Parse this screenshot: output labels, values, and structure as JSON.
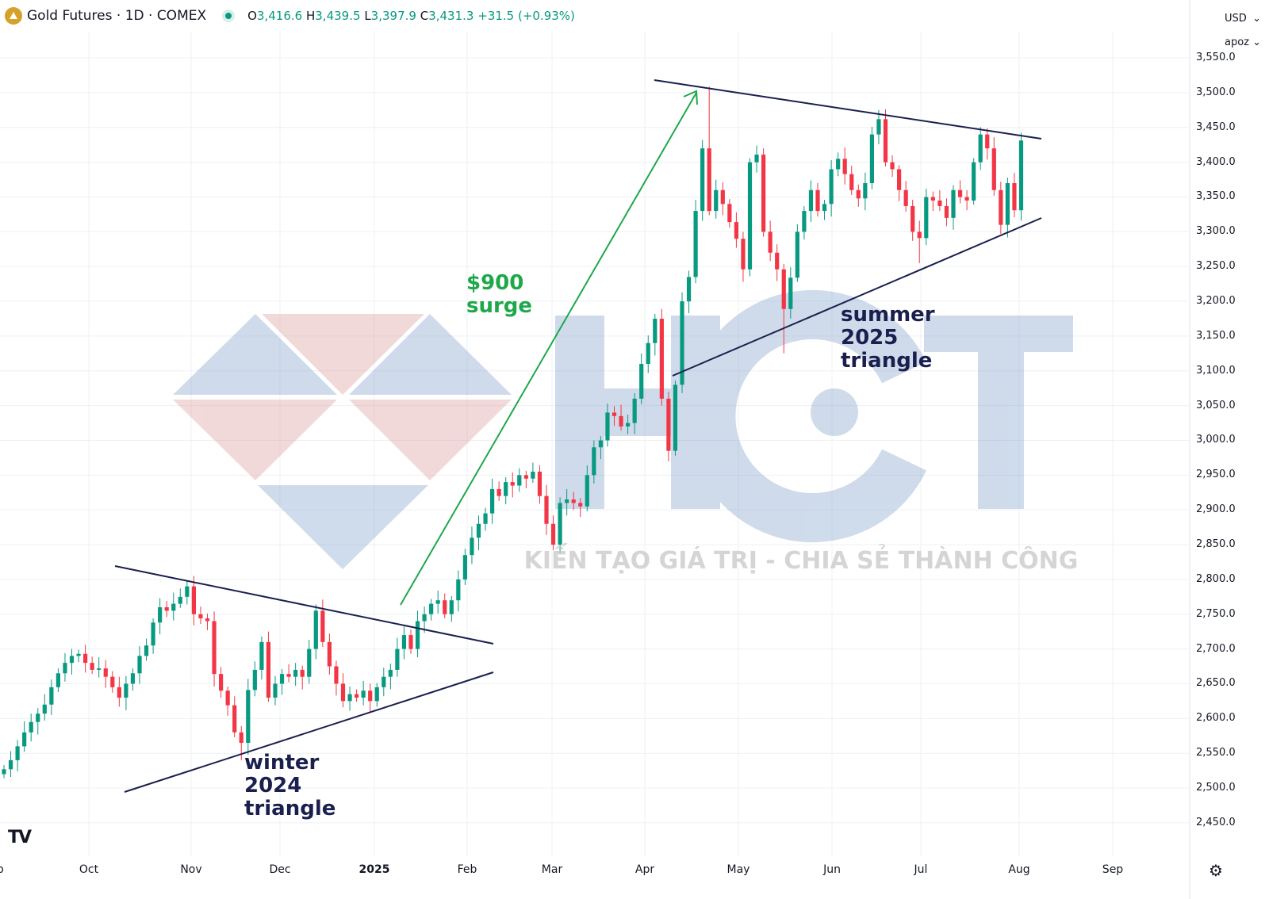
{
  "header": {
    "symbol_title": "Gold Futures · 1D · COMEX",
    "open_label": "O",
    "open": "3,416.6",
    "high_label": "H",
    "high": "3,439.5",
    "low_label": "L",
    "low": "3,397.9",
    "close_label": "C",
    "close": "3,431.3",
    "change": "+31.5 (+0.93%)"
  },
  "controls": {
    "currency": "USD",
    "scale": "apoz"
  },
  "watermark": {
    "brand": "HCT",
    "slogan": "KIẾN TẠO GIÁ TRỊ - CHIA SẺ THÀNH CÔNG"
  },
  "colors": {
    "up": "#089981",
    "down": "#f23645",
    "trend": "#1a1f4e",
    "arrow": "#1fa84a"
  },
  "chart_data": {
    "type": "candlestick",
    "title": "Gold Futures · 1D · COMEX",
    "ylim": [
      2425,
      3575
    ],
    "y_ticks": [
      "3,550.0",
      "3,500.0",
      "3,450.0",
      "3,400.0",
      "3,350.0",
      "3,300.0",
      "3,250.0",
      "3,200.0",
      "3,150.0",
      "3,100.0",
      "3,050.0",
      "3,000.0",
      "2,950.0",
      "2,900.0",
      "2,850.0",
      "2,800.0",
      "2,750.0",
      "2,700.0",
      "2,650.0",
      "2,600.0",
      "2,550.0",
      "2,500.0",
      "2,450.0"
    ],
    "x_ticks": [
      "ep",
      "Oct",
      "Nov",
      "Dec",
      "2025",
      "Feb",
      "Mar",
      "Apr",
      "May",
      "Jun",
      "Jul",
      "Aug",
      "Sep"
    ],
    "closes": [
      2527,
      2540,
      2560,
      2580,
      2595,
      2607,
      2620,
      2645,
      2665,
      2680,
      2690,
      2693,
      2680,
      2670,
      2672,
      2660,
      2645,
      2630,
      2650,
      2665,
      2690,
      2705,
      2738,
      2760,
      2755,
      2765,
      2775,
      2790,
      2750,
      2744,
      2740,
      2664,
      2640,
      2619,
      2580,
      2565,
      2641,
      2670,
      2710,
      2630,
      2650,
      2664,
      2660,
      2670,
      2660,
      2700,
      2755,
      2710,
      2675,
      2650,
      2625,
      2635,
      2630,
      2640,
      2625,
      2645,
      2660,
      2670,
      2700,
      2720,
      2700,
      2740,
      2750,
      2765,
      2770,
      2750,
      2770,
      2800,
      2835,
      2860,
      2880,
      2895,
      2930,
      2920,
      2940,
      2935,
      2950,
      2945,
      2955,
      2920,
      2880,
      2850,
      2910,
      2915,
      2910,
      2905,
      2950,
      2990,
      3000,
      3040,
      3035,
      3020,
      3025,
      3060,
      3110,
      3140,
      3175,
      3060,
      2985,
      3080,
      3200,
      3235,
      3330,
      3420,
      3330,
      3360,
      3340,
      3314,
      3290,
      3246,
      3400,
      3411,
      3300,
      3270,
      3246,
      3189,
      3234,
      3300,
      3330,
      3360,
      3330,
      3340,
      3390,
      3405,
      3383,
      3360,
      3348,
      3370,
      3440,
      3462,
      3400,
      3390,
      3360,
      3337,
      3300,
      3291,
      3350,
      3345,
      3337,
      3320,
      3360,
      3350,
      3345,
      3400,
      3440,
      3420,
      3360,
      3310,
      3370,
      3331,
      3431.3
    ],
    "first_open": 2520,
    "notable_extremes": {
      "highs": {
        "104": 3509,
        "129": 3475,
        "144": 3451
      },
      "lows": {
        "35": 2540,
        "98": 2970,
        "115": 3125,
        "135": 3255
      }
    },
    "annotations": [
      "$900",
      "surge",
      "winter",
      "2024",
      "triangle",
      "summer",
      "2025",
      "triangle"
    ]
  }
}
